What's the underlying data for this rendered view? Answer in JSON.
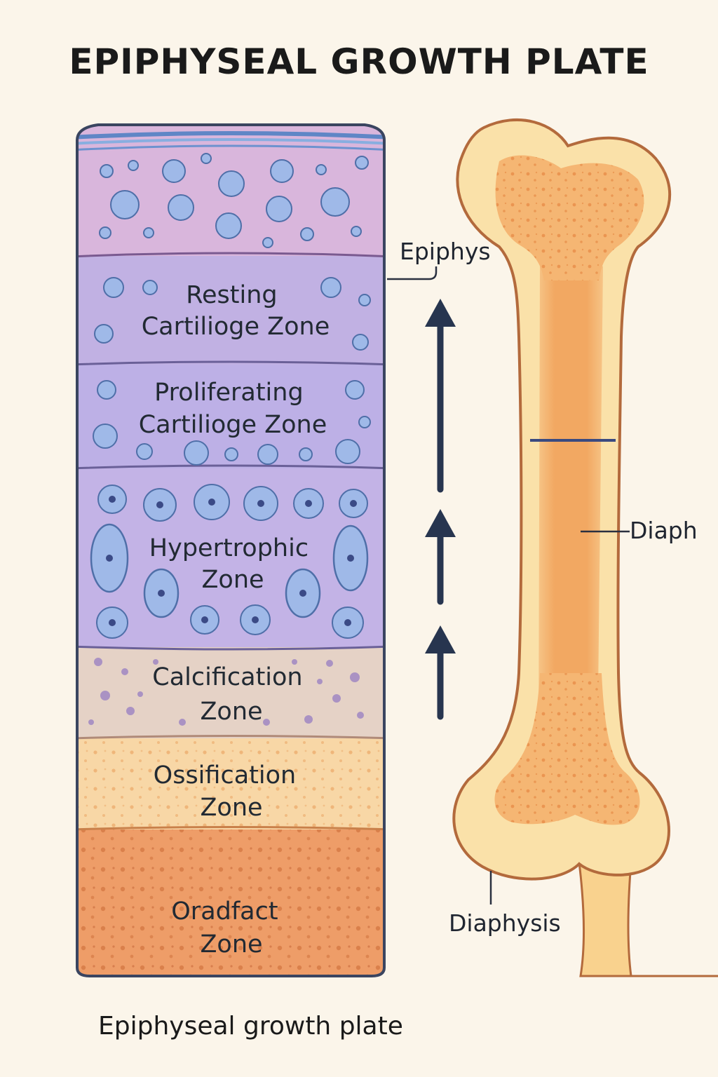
{
  "title": "EPIPHYSEAL GROWTH PLATE",
  "caption": "Epiphyseal growth plate",
  "zones": [
    {
      "id": "top-cartilage",
      "lines": [],
      "fill": "#d9b6dc"
    },
    {
      "id": "resting",
      "lines": [
        "Resting",
        "Cartilioge Zone"
      ],
      "fill": "#c1b1e3"
    },
    {
      "id": "proliferating",
      "lines": [
        "Proliferating",
        "Cartilioge Zone"
      ],
      "fill": "#bdb0e6"
    },
    {
      "id": "hypertrophic",
      "lines": [
        "Hypertrophic",
        "Zone"
      ],
      "fill": "#c3b3e6"
    },
    {
      "id": "calcification",
      "lines": [
        "Calcification",
        "Zone"
      ],
      "fill": "#e5d2c6"
    },
    {
      "id": "ossification",
      "lines": [
        "Ossification",
        "Zone"
      ],
      "fill": "#f8d7a6"
    },
    {
      "id": "orcifact",
      "lines": [
        "Oradfact",
        "Zone"
      ],
      "fill": "#ee9d68"
    }
  ],
  "bone_labels": {
    "epiphys": "Epiphys",
    "diaph": "Diaph",
    "diaphysis": "Diaphysis"
  },
  "colors": {
    "outline": "#3a4560",
    "arrow": "#27354f",
    "bone_outline": "#b36a3c",
    "bone_light": "#fbe1a8",
    "bone_mid": "#f2b46d",
    "bone_dark": "#ee9a55",
    "cell_fill": "#9fb9e8",
    "cell_edge": "#4f6fa8",
    "nucleus": "#3b4a86"
  }
}
